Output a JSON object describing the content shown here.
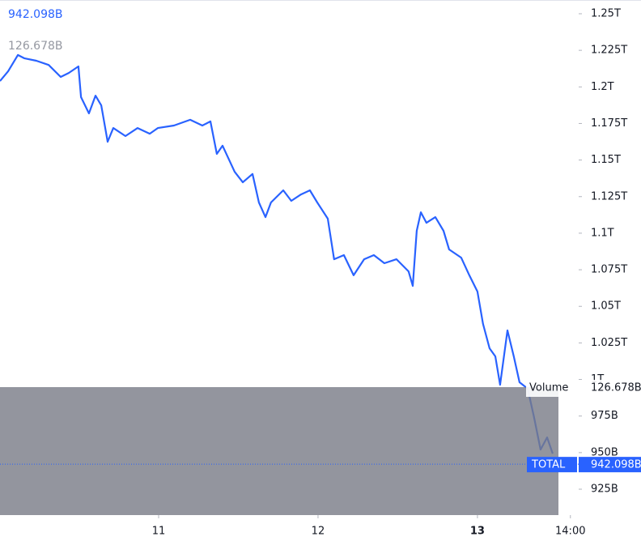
{
  "chart_data": {
    "type": "line",
    "x": [
      10.005,
      10.056,
      10.117,
      10.157,
      10.233,
      10.31,
      10.386,
      10.436,
      10.497,
      10.513,
      10.563,
      10.604,
      10.64,
      10.68,
      10.716,
      10.792,
      10.868,
      10.944,
      10.995,
      11.096,
      11.198,
      11.274,
      11.325,
      11.365,
      11.401,
      11.477,
      11.528,
      11.589,
      11.629,
      11.67,
      11.705,
      11.782,
      11.832,
      11.893,
      11.949,
      11.995,
      12.061,
      12.101,
      12.162,
      12.223,
      12.289,
      12.35,
      12.416,
      12.492,
      12.568,
      12.594,
      12.619,
      12.645,
      12.68,
      12.736,
      12.787,
      12.822,
      12.898,
      12.949,
      13.0,
      13.035,
      13.076,
      13.112,
      13.142,
      13.188,
      13.228,
      13.264,
      13.315,
      13.355,
      13.396,
      13.437,
      13.472
    ],
    "series": [
      {
        "name": "TOTAL",
        "color": "#2962ff",
        "values": [
          1204,
          1210.6,
          1221.8,
          1219.6,
          1217.9,
          1215,
          1206.8,
          1209.5,
          1214,
          1193,
          1181.9,
          1194,
          1187.4,
          1162.5,
          1171.9,
          1166.4,
          1171.9,
          1168,
          1171.9,
          1173.6,
          1177.5,
          1173.6,
          1176.4,
          1154.2,
          1159.8,
          1142,
          1134.8,
          1140.5,
          1121,
          1111,
          1121,
          1129.3,
          1122.1,
          1126.5,
          1129.3,
          1121,
          1109.9,
          1082.2,
          1085,
          1071.2,
          1082.2,
          1085,
          1079.5,
          1082.2,
          1073.9,
          1064,
          1101.6,
          1114.3,
          1107.1,
          1111,
          1101.6,
          1088.9,
          1083.3,
          1071.2,
          1060.1,
          1038,
          1021.3,
          1015.8,
          996.4,
          1033.5,
          1015.8,
          998.1,
          993.7,
          974.3,
          952.1,
          960.4,
          949.3
        ]
      }
    ],
    "last_value": 942.098,
    "last_value_label": "942.098B",
    "volume": {
      "name": "Volume",
      "value": 126.678,
      "value_label": "126.678B"
    },
    "xlim": [
      10.005,
      13.635
    ],
    "xticks": [
      11,
      12,
      13,
      {
        "value": 13.583,
        "label": "14:00"
      }
    ],
    "ylim": [
      907.3,
      1259.4
    ],
    "yticks": [
      {
        "value": 1250,
        "label": "1.25T"
      },
      {
        "value": 1225,
        "label": "1.225T"
      },
      {
        "value": 1200,
        "label": "1.2T"
      },
      {
        "value": 1175,
        "label": "1.175T"
      },
      {
        "value": 1150,
        "label": "1.15T"
      },
      {
        "value": 1125,
        "label": "1.125T"
      },
      {
        "value": 1100,
        "label": "1.1T"
      },
      {
        "value": 1075,
        "label": "1.075T"
      },
      {
        "value": 1050,
        "label": "1.05T"
      },
      {
        "value": 1025,
        "label": "1.025T"
      },
      {
        "value": 1000,
        "label": "1T"
      },
      {
        "value": 975,
        "label": "975B"
      },
      {
        "value": 950,
        "label": "950B"
      },
      {
        "value": 925,
        "label": "925B"
      }
    ]
  }
}
